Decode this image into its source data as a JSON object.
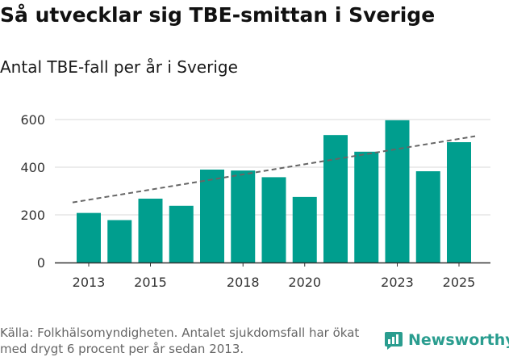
{
  "header": {
    "title": "Så utvecklar sig TBE-smittan i Sverige",
    "subtitle": "Antal TBE-fall per år i Sverige"
  },
  "footer": {
    "source": "Källa: Folkhälsomyndigheten. Antalet sjukdomsfall har ökat med drygt 6 procent per år sedan 2013.",
    "logo_text": "Newsworthy"
  },
  "colors": {
    "bar": "#009e8e",
    "trend": "#666666",
    "grid": "#d9d9d9",
    "axis": "#333333",
    "logo": "#2a9d8f"
  },
  "chart_data": {
    "type": "bar",
    "title": "Så utvecklar sig TBE-smittan i Sverige",
    "subtitle": "Antal TBE-fall per år i Sverige",
    "xlabel": "",
    "ylabel": "",
    "categories": [
      2013,
      2014,
      2015,
      2016,
      2017,
      2018,
      2019,
      2020,
      2021,
      2022,
      2023,
      2024,
      2025
    ],
    "values": [
      208,
      178,
      268,
      238,
      390,
      386,
      358,
      275,
      535,
      465,
      597,
      383,
      505
    ],
    "x_tick_labels": [
      "2013",
      "2015",
      "2018",
      "2020",
      "2023",
      "2025"
    ],
    "y_ticks": [
      0,
      200,
      400,
      600
    ],
    "ylim": [
      0,
      650
    ],
    "grid": true,
    "trendline": {
      "style": "dashed",
      "start": {
        "x": 2013,
        "y": 252
      },
      "end": {
        "x": 2025,
        "y": 530
      }
    }
  }
}
